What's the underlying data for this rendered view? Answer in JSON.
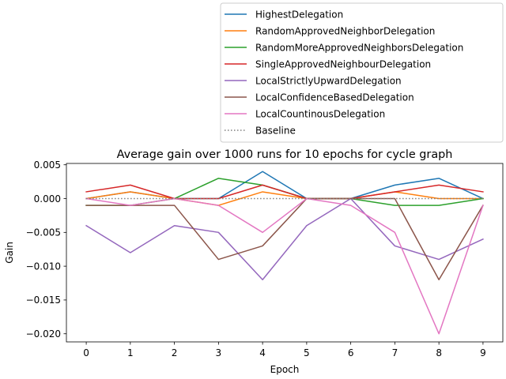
{
  "chart_data": {
    "type": "line",
    "title": "Average gain over 1000 runs for 10 epochs for cycle graph",
    "xlabel": "Epoch",
    "ylabel": "Gain",
    "x": [
      0,
      1,
      2,
      3,
      4,
      5,
      6,
      7,
      8,
      9
    ],
    "xlim": [
      -0.45,
      9.45
    ],
    "ylim": [
      -0.0212,
      0.0052
    ],
    "xticks": [
      "0",
      "1",
      "2",
      "3",
      "4",
      "5",
      "6",
      "7",
      "8",
      "9"
    ],
    "yticks": [
      {
        "value": 0.005,
        "label": "0.005"
      },
      {
        "value": 0.0,
        "label": "0.000"
      },
      {
        "value": -0.005,
        "label": "−0.005"
      },
      {
        "value": -0.01,
        "label": "−0.010"
      },
      {
        "value": -0.015,
        "label": "−0.015"
      },
      {
        "value": -0.02,
        "label": "−0.020"
      }
    ],
    "grid": false,
    "legend_position": "top-right, above plot",
    "series": [
      {
        "name": "HighestDelegation",
        "color": "#1f77b4",
        "style": "solid",
        "values": [
          0,
          0.001,
          0,
          0,
          0.004,
          0,
          0,
          0.002,
          0.003,
          0
        ]
      },
      {
        "name": "RandomApprovedNeighborDelegation",
        "color": "#ff7f0e",
        "style": "solid",
        "values": [
          0,
          0.001,
          0,
          -0.001,
          0.001,
          0,
          0,
          0.001,
          0,
          0
        ]
      },
      {
        "name": "RandomMoreApprovedNeighborsDelegation",
        "color": "#2ca02c",
        "style": "solid",
        "values": [
          -0.001,
          -0.001,
          0,
          0.003,
          0.002,
          0,
          0,
          -0.001,
          -0.001,
          0
        ]
      },
      {
        "name": "SingleApprovedNeighbourDelegation",
        "color": "#d62728",
        "style": "solid",
        "values": [
          0.001,
          0.002,
          0,
          0,
          0.002,
          0,
          0,
          0.001,
          0.002,
          0.001
        ]
      },
      {
        "name": "LocalStrictlyUpwardDelegation",
        "color": "#9467bd",
        "style": "solid",
        "values": [
          -0.004,
          -0.008,
          -0.004,
          -0.005,
          -0.012,
          -0.004,
          0,
          -0.007,
          -0.009,
          -0.006
        ]
      },
      {
        "name": "LocalConfidenceBasedDelegation",
        "color": "#8c564b",
        "style": "solid",
        "values": [
          -0.001,
          -0.001,
          -0.001,
          -0.009,
          -0.007,
          0,
          0,
          0,
          -0.012,
          -0.001
        ]
      },
      {
        "name": "LocalCountinousDelegation",
        "color": "#e377c2",
        "style": "solid",
        "values": [
          0,
          -0.001,
          0,
          -0.001,
          -0.005,
          0,
          -0.001,
          -0.005,
          -0.02,
          -0.001
        ]
      },
      {
        "name": "Baseline",
        "color": "#7f7f7f",
        "style": "dotted",
        "values": [
          0,
          0,
          0,
          0,
          0,
          0,
          0,
          0,
          0,
          0
        ]
      }
    ]
  }
}
